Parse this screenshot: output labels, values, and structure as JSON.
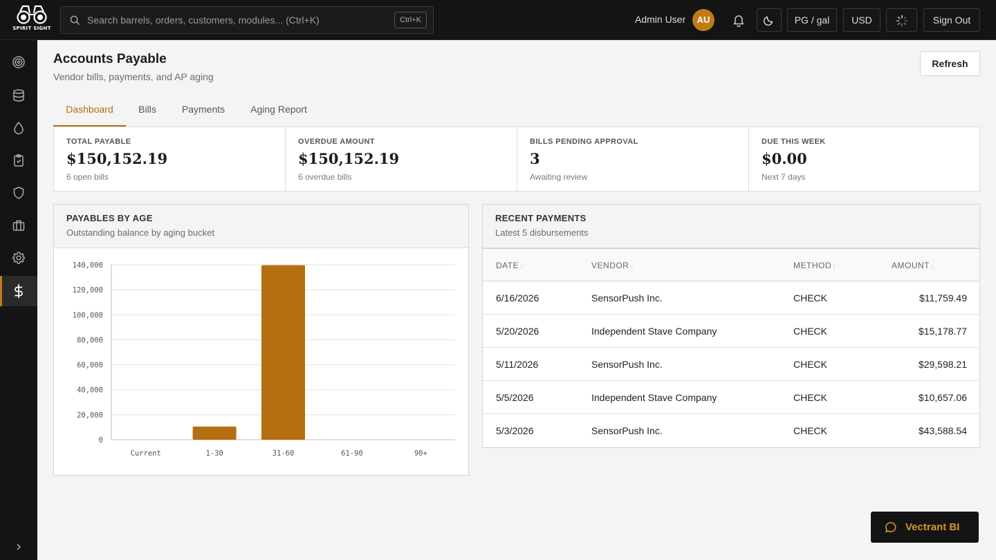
{
  "brand": {
    "logo_text": "SPIRIT SIGHT"
  },
  "topbar": {
    "search_placeholder": "Search barrels, orders, customers, modules... (Ctrl+K)",
    "search_shortcut": "Ctrl+K",
    "user_name": "Admin User",
    "avatar_initials": "AU",
    "unit_label": "PG / gal",
    "currency_label": "USD",
    "signout_label": "Sign Out"
  },
  "sidebar": {
    "items": [
      {
        "icon": "target-icon"
      },
      {
        "icon": "database-icon"
      },
      {
        "icon": "droplet-icon"
      },
      {
        "icon": "clipboard-icon"
      },
      {
        "icon": "shield-icon"
      },
      {
        "icon": "briefcase-icon"
      },
      {
        "icon": "gear-icon"
      },
      {
        "icon": "dollar-icon",
        "active": true
      }
    ]
  },
  "page": {
    "title": "Accounts Payable",
    "subtitle": "Vendor bills, payments, and AP aging",
    "refresh_label": "Refresh"
  },
  "tabs": [
    {
      "label": "Dashboard",
      "active": true
    },
    {
      "label": "Bills"
    },
    {
      "label": "Payments"
    },
    {
      "label": "Aging Report"
    }
  ],
  "kpis": [
    {
      "label": "TOTAL PAYABLE",
      "value": "$150,152.19",
      "sub": "6 open bills"
    },
    {
      "label": "OVERDUE AMOUNT",
      "value": "$150,152.19",
      "sub": "6 overdue bills"
    },
    {
      "label": "BILLS PENDING APPROVAL",
      "value": "3",
      "sub": "Awaiting review"
    },
    {
      "label": "DUE THIS WEEK",
      "value": "$0.00",
      "sub": "Next 7 days"
    }
  ],
  "aging_card": {
    "title": "PAYABLES BY AGE",
    "subtitle": "Outstanding balance by aging bucket"
  },
  "chart_data": {
    "type": "bar",
    "categories": [
      "Current",
      "1-30",
      "31-60",
      "61-90",
      "90+"
    ],
    "values": [
      0,
      10500,
      139652.19,
      0,
      0
    ],
    "ylim": [
      0,
      140000
    ],
    "yticks": [
      "0",
      "20,000",
      "40,000",
      "60,000",
      "80,000",
      "100,000",
      "120,000",
      "140,000"
    ],
    "grid": true,
    "bar_color": "#b36f10"
  },
  "payments_card": {
    "title": "RECENT PAYMENTS",
    "subtitle": "Latest 5 disbursements",
    "columns": [
      "DATE",
      "VENDOR",
      "METHOD",
      "AMOUNT"
    ],
    "rows": [
      {
        "date": "6/16/2026",
        "vendor": "SensorPush Inc.",
        "method": "CHECK",
        "amount": "$11,759.49"
      },
      {
        "date": "5/20/2026",
        "vendor": "Independent Stave Company",
        "method": "CHECK",
        "amount": "$15,178.77"
      },
      {
        "date": "5/11/2026",
        "vendor": "SensorPush Inc.",
        "method": "CHECK",
        "amount": "$29,598.21"
      },
      {
        "date": "5/5/2026",
        "vendor": "Independent Stave Company",
        "method": "CHECK",
        "amount": "$10,657.06"
      },
      {
        "date": "5/3/2026",
        "vendor": "SensorPush Inc.",
        "method": "CHECK",
        "amount": "$43,588.54"
      }
    ]
  },
  "assistant": {
    "label": "Vectrant BI"
  },
  "colors": {
    "accent": "#b36f10",
    "topbar": "#141414",
    "avatar": "#c27a16"
  }
}
